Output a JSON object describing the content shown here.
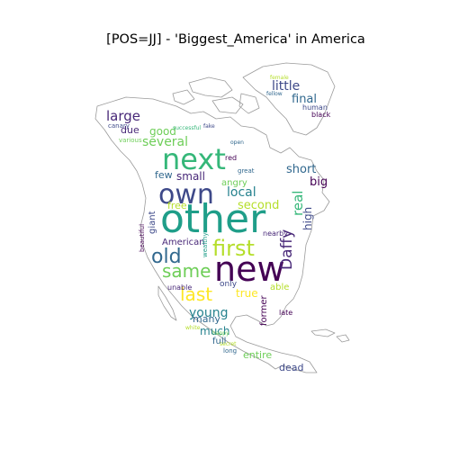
{
  "title": "[POS=JJ] - 'Biggest_America' in America",
  "colors": {
    "background": "#ffffff",
    "outline": "#9a9a9a",
    "palette": [
      "#440154",
      "#482878",
      "#3e4989",
      "#31688e",
      "#26828e",
      "#1f9e89",
      "#35b779",
      "#6ece58",
      "#b5de2b",
      "#fde725"
    ]
  },
  "words": [
    {
      "text": "other",
      "color": "#1f9e89"
    },
    {
      "text": "new",
      "color": "#440154"
    },
    {
      "text": "next",
      "color": "#35b779"
    },
    {
      "text": "own",
      "color": "#3e4989"
    },
    {
      "text": "first",
      "color": "#b5de2b"
    },
    {
      "text": "old",
      "color": "#31688e"
    },
    {
      "text": "same",
      "color": "#6ece58"
    },
    {
      "text": "last",
      "color": "#fde725"
    },
    {
      "text": "Daffy",
      "color": "#482878"
    },
    {
      "text": "real",
      "color": "#35b779"
    },
    {
      "text": "large",
      "color": "#482878"
    },
    {
      "text": "several",
      "color": "#6ece58"
    },
    {
      "text": "little",
      "color": "#3e4989"
    },
    {
      "text": "final",
      "color": "#31688e"
    },
    {
      "text": "short",
      "color": "#31688e"
    },
    {
      "text": "local",
      "color": "#26828e"
    },
    {
      "text": "young",
      "color": "#26828e"
    },
    {
      "text": "second",
      "color": "#b5de2b"
    },
    {
      "text": "big",
      "color": "#440154"
    },
    {
      "text": "high",
      "color": "#3e4989"
    },
    {
      "text": "small",
      "color": "#482878"
    },
    {
      "text": "free",
      "color": "#b5de2b"
    },
    {
      "text": "good",
      "color": "#6ece58"
    },
    {
      "text": "due",
      "color": "#482878"
    },
    {
      "text": "true",
      "color": "#fde725"
    },
    {
      "text": "much",
      "color": "#26828e"
    },
    {
      "text": "many",
      "color": "#31688e"
    },
    {
      "text": "entire",
      "color": "#6ece58"
    },
    {
      "text": "dead",
      "color": "#3e4989"
    },
    {
      "text": "American",
      "color": "#482878"
    },
    {
      "text": "few",
      "color": "#31688e"
    },
    {
      "text": "giant",
      "color": "#3e4989"
    },
    {
      "text": "angry",
      "color": "#6ece58"
    },
    {
      "text": "full",
      "color": "#31688e"
    },
    {
      "text": "former",
      "color": "#440154"
    },
    {
      "text": "only",
      "color": "#3e4989"
    },
    {
      "text": "able",
      "color": "#b5de2b"
    },
    {
      "text": "unable",
      "color": "#482878"
    },
    {
      "text": "late",
      "color": "#440154"
    },
    {
      "text": "nearby",
      "color": "#482878"
    },
    {
      "text": "red",
      "color": "#440154"
    },
    {
      "text": "black",
      "color": "#440154"
    },
    {
      "text": "human",
      "color": "#3e4989"
    },
    {
      "text": "long",
      "color": "#31688e"
    },
    {
      "text": "great",
      "color": "#31688e"
    },
    {
      "text": "canary",
      "color": "#3e4989"
    },
    {
      "text": "various",
      "color": "#6ece58"
    },
    {
      "text": "successful",
      "color": "#35b779"
    },
    {
      "text": "beautiful",
      "color": "#440154"
    },
    {
      "text": "wealthy",
      "color": "#1f9e89"
    },
    {
      "text": "happy",
      "color": "#6ece58"
    },
    {
      "text": "white",
      "color": "#b5de2b"
    },
    {
      "text": "open",
      "color": "#31688e"
    },
    {
      "text": "fellow",
      "color": "#31688e"
    },
    {
      "text": "female",
      "color": "#b5de2b"
    },
    {
      "text": "fake",
      "color": "#3e4989"
    },
    {
      "text": "secret",
      "color": "#b5de2b"
    }
  ]
}
